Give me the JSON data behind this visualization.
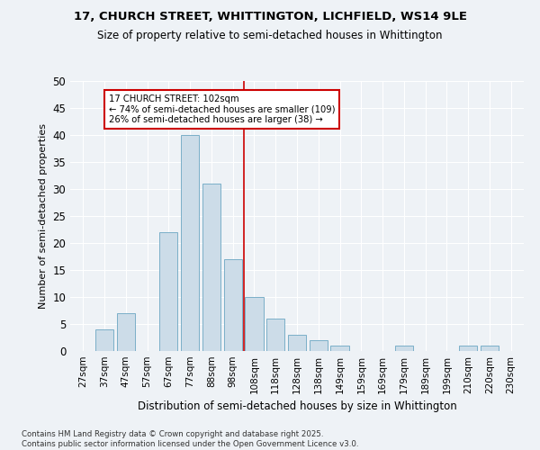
{
  "title": "17, CHURCH STREET, WHITTINGTON, LICHFIELD, WS14 9LE",
  "subtitle": "Size of property relative to semi-detached houses in Whittington",
  "xlabel": "Distribution of semi-detached houses by size in Whittington",
  "ylabel": "Number of semi-detached properties",
  "bar_color": "#ccdce8",
  "bar_edge_color": "#7aafc8",
  "categories": [
    "27sqm",
    "37sqm",
    "47sqm",
    "57sqm",
    "67sqm",
    "77sqm",
    "88sqm",
    "98sqm",
    "108sqm",
    "118sqm",
    "128sqm",
    "138sqm",
    "149sqm",
    "159sqm",
    "169sqm",
    "179sqm",
    "189sqm",
    "199sqm",
    "210sqm",
    "220sqm",
    "230sqm"
  ],
  "values": [
    0,
    4,
    7,
    0,
    22,
    40,
    31,
    17,
    10,
    6,
    3,
    2,
    1,
    0,
    0,
    1,
    0,
    0,
    1,
    1,
    0
  ],
  "ylim": [
    0,
    50
  ],
  "yticks": [
    0,
    5,
    10,
    15,
    20,
    25,
    30,
    35,
    40,
    45,
    50
  ],
  "vline_x": 7.5,
  "vline_color": "#cc0000",
  "annotation_title": "17 CHURCH STREET: 102sqm",
  "annotation_line1": "← 74% of semi-detached houses are smaller (109)",
  "annotation_line2": "26% of semi-detached houses are larger (38) →",
  "annotation_box_color": "#cc0000",
  "annotation_bg": "#ffffff",
  "footnote1": "Contains HM Land Registry data © Crown copyright and database right 2025.",
  "footnote2": "Contains public sector information licensed under the Open Government Licence v3.0.",
  "background_color": "#eef2f6",
  "plot_bg_color": "#eef2f6",
  "grid_color": "#ffffff"
}
